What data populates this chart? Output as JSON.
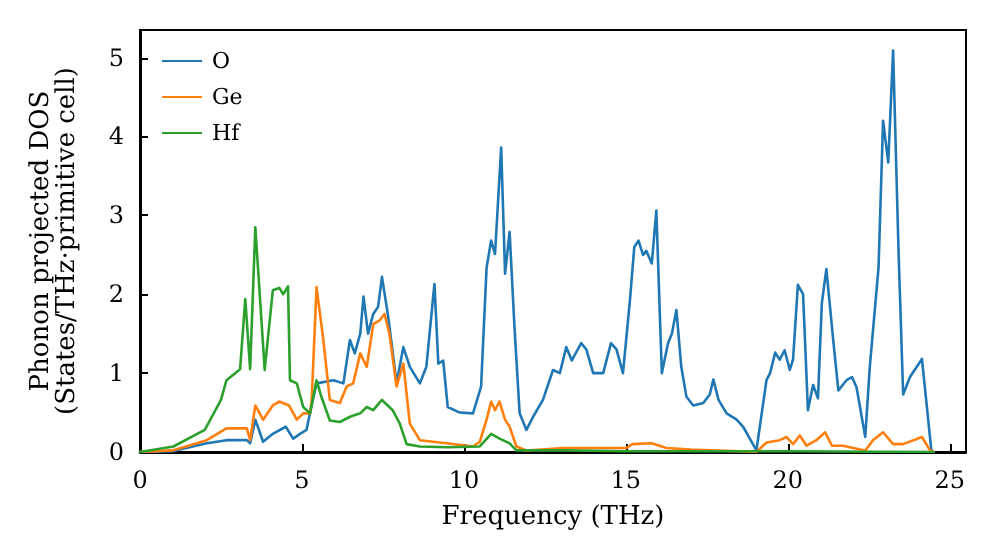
{
  "chart_data": {
    "type": "line",
    "xlabel": "Frequency (THz)",
    "ylabel": "Phonon projected DOS\n(States/THz·primitive cell)",
    "xlim": [
      0,
      25.5
    ],
    "ylim": [
      0,
      5.35
    ],
    "xticks": [
      0,
      5,
      10,
      15,
      20,
      25
    ],
    "yticks": [
      0,
      1,
      2,
      3,
      4,
      5
    ],
    "grid": false,
    "legend": "top left",
    "marker": "none",
    "line_style": "solid",
    "series": [
      {
        "name": "O",
        "color": "#1f77b4",
        "x": [
          0,
          1,
          2.06,
          2.67,
          3.3,
          3.4,
          3.56,
          3.8,
          4.1,
          4.5,
          4.73,
          4.94,
          5.14,
          5.3,
          5.45,
          5.97,
          6.28,
          6.48,
          6.63,
          6.8,
          6.9,
          7.04,
          7.2,
          7.35,
          7.47,
          7.65,
          7.82,
          7.92,
          8.13,
          8.33,
          8.64,
          8.84,
          9.09,
          9.21,
          9.36,
          9.5,
          9.87,
          10.28,
          10.53,
          10.7,
          10.84,
          10.96,
          11.15,
          11.27,
          11.41,
          11.56,
          11.72,
          11.93,
          12.14,
          12.44,
          12.75,
          12.96,
          13.16,
          13.33,
          13.62,
          13.78,
          13.99,
          14.3,
          14.54,
          14.71,
          14.91,
          15.12,
          15.26,
          15.39,
          15.53,
          15.63,
          15.8,
          15.94,
          16.11,
          16.3,
          16.42,
          16.56,
          16.71,
          16.87,
          17.08,
          17.39,
          17.59,
          17.7,
          17.86,
          18.11,
          18.42,
          18.62,
          19.03,
          19.34,
          19.45,
          19.61,
          19.75,
          19.9,
          20.06,
          20.16,
          20.31,
          20.47,
          20.62,
          20.78,
          20.93,
          21.05,
          21.19,
          21.4,
          21.56,
          21.81,
          21.98,
          22.12,
          22.39,
          22.53,
          22.8,
          22.94,
          23.1,
          23.25,
          23.42,
          23.56,
          23.77,
          24.14,
          24.43,
          24.5
        ],
        "values": [
          0,
          0.01,
          0.11,
          0.15,
          0.15,
          0.11,
          0.41,
          0.13,
          0.23,
          0.32,
          0.17,
          0.23,
          0.28,
          0.6,
          0.87,
          0.91,
          0.87,
          1.42,
          1.25,
          1.5,
          1.97,
          1.5,
          1.75,
          1.84,
          2.22,
          1.75,
          1.21,
          0.87,
          1.33,
          1.08,
          0.87,
          1.08,
          2.13,
          1.12,
          1.16,
          0.57,
          0.5,
          0.49,
          0.83,
          2.34,
          2.68,
          2.51,
          3.86,
          2.26,
          2.79,
          1.59,
          0.49,
          0.28,
          0.45,
          0.66,
          1.04,
          1.0,
          1.33,
          1.16,
          1.38,
          1.3,
          1.0,
          1.0,
          1.38,
          1.3,
          1.0,
          1.9,
          2.6,
          2.68,
          2.5,
          2.55,
          2.39,
          3.06,
          1.0,
          1.38,
          1.5,
          1.8,
          1.08,
          0.7,
          0.59,
          0.62,
          0.73,
          0.92,
          0.66,
          0.49,
          0.41,
          0.32,
          0.02,
          0.91,
          1.0,
          1.26,
          1.17,
          1.29,
          1.04,
          1.17,
          2.12,
          2.0,
          0.53,
          0.85,
          0.68,
          1.89,
          2.32,
          1.42,
          0.78,
          0.91,
          0.95,
          0.82,
          0.19,
          1.08,
          2.34,
          4.2,
          3.67,
          5.09,
          2.51,
          0.73,
          0.95,
          1.18,
          0.02,
          0
        ]
      },
      {
        "name": "Ge",
        "color": "#ff7f0e",
        "x": [
          0,
          1,
          2.06,
          2.67,
          3.3,
          3.4,
          3.56,
          3.8,
          4.1,
          4.3,
          4.6,
          4.84,
          5.04,
          5.25,
          5.3,
          5.45,
          5.66,
          5.86,
          6.17,
          6.38,
          6.58,
          6.8,
          7.0,
          7.2,
          7.4,
          7.55,
          7.7,
          7.92,
          8.13,
          8.33,
          8.64,
          9.46,
          10.28,
          10.49,
          10.7,
          10.84,
          10.96,
          11.1,
          11.27,
          11.41,
          11.62,
          11.93,
          13.06,
          15.0,
          15.2,
          15.8,
          16.25,
          17.0,
          18.5,
          19.03,
          19.34,
          19.75,
          19.96,
          20.16,
          20.37,
          20.58,
          20.88,
          21.15,
          21.36,
          21.71,
          22.02,
          22.39,
          22.63,
          22.94,
          23.25,
          23.56,
          24.14,
          24.39,
          24.5
        ],
        "values": [
          0,
          0.02,
          0.15,
          0.3,
          0.3,
          0.15,
          0.59,
          0.41,
          0.59,
          0.64,
          0.59,
          0.41,
          0.49,
          0.49,
          0.66,
          2.09,
          1.42,
          0.66,
          0.62,
          0.83,
          0.87,
          1.25,
          1.08,
          1.62,
          1.67,
          1.75,
          1.5,
          0.83,
          1.12,
          0.36,
          0.15,
          0.11,
          0.07,
          0.13,
          0.41,
          0.64,
          0.53,
          0.64,
          0.41,
          0.32,
          0.07,
          0.02,
          0.05,
          0.05,
          0.1,
          0.11,
          0.05,
          0.03,
          0.01,
          0,
          0.12,
          0.15,
          0.19,
          0.1,
          0.21,
          0.08,
          0.15,
          0.25,
          0.08,
          0.08,
          0.05,
          0.02,
          0.15,
          0.25,
          0.1,
          0.1,
          0.19,
          0.02,
          0
        ]
      },
      {
        "name": "Hf",
        "color": "#2ca02c",
        "x": [
          0,
          1.03,
          2.0,
          2.5,
          2.67,
          3.09,
          3.25,
          3.4,
          3.56,
          3.85,
          4.1,
          4.3,
          4.42,
          4.57,
          4.63,
          4.84,
          5.04,
          5.25,
          5.45,
          5.6,
          5.86,
          6.17,
          6.5,
          6.8,
          7.0,
          7.2,
          7.47,
          7.8,
          8.02,
          8.23,
          8.64,
          9.5,
          10.49,
          10.84,
          11.1,
          11.41,
          11.62,
          13.16,
          15.0,
          20.0,
          24.5
        ],
        "values": [
          0,
          0.07,
          0.28,
          0.66,
          0.91,
          1.05,
          1.94,
          1.05,
          2.85,
          1.04,
          2.05,
          2.08,
          2.0,
          2.1,
          0.91,
          0.87,
          0.57,
          0.49,
          0.91,
          0.7,
          0.4,
          0.38,
          0.45,
          0.49,
          0.57,
          0.53,
          0.66,
          0.53,
          0.36,
          0.1,
          0.07,
          0.06,
          0.07,
          0.23,
          0.17,
          0.11,
          0.02,
          0.02,
          0.01,
          0.01,
          0
        ]
      }
    ]
  }
}
